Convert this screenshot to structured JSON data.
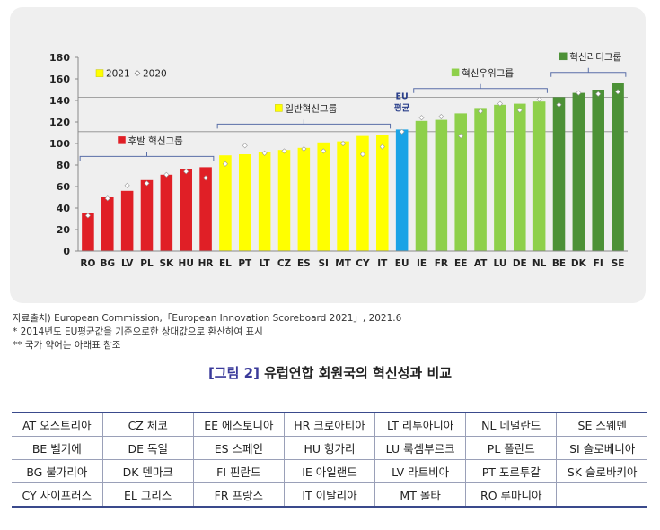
{
  "chart_data": {
    "type": "bar",
    "legend_labels": [
      "2021",
      "2020"
    ],
    "categories": [
      "RO",
      "BG",
      "LV",
      "PL",
      "SK",
      "HU",
      "HR",
      "EL",
      "PT",
      "LT",
      "CZ",
      "ES",
      "SI",
      "MT",
      "CY",
      "IT",
      "EU",
      "IE",
      "FR",
      "EE",
      "AT",
      "LU",
      "DE",
      "NL",
      "BE",
      "DK",
      "FI",
      "SE"
    ],
    "series": [
      {
        "name": "2021",
        "values": [
          35,
          50,
          56,
          66,
          71,
          76,
          78,
          89,
          90,
          92,
          94,
          96,
          101,
          102,
          107,
          108,
          113,
          121,
          122,
          128,
          133,
          136,
          137,
          139,
          143,
          147,
          150,
          156
        ]
      },
      {
        "name": "2020",
        "values": [
          33,
          49,
          61,
          63,
          71,
          74,
          68,
          81,
          98,
          91,
          93,
          95,
          93,
          100,
          90,
          97,
          111,
          124,
          125,
          107,
          130,
          137,
          131,
          141,
          136,
          147,
          146,
          148
        ]
      }
    ],
    "bar_colors": {
      "low": "#e01f26",
      "moderate": "#ffff00",
      "eu": "#1aa3e6",
      "strong": "#8ed04a",
      "leader": "#4c9136",
      "marker": "#ffffff"
    },
    "groups": [
      {
        "label": "후발 혁신그룹",
        "from": 0,
        "to": 6,
        "color": "#e01f26"
      },
      {
        "label": "일반혁신그룹",
        "from": 7,
        "to": 15,
        "color": "#ffff00"
      },
      {
        "label": "혁신우위그룹",
        "from": 17,
        "to": 23,
        "color": "#8ed04a"
      },
      {
        "label": "혁신리더그룹",
        "from": 24,
        "to": 27,
        "color": "#4c9136"
      }
    ],
    "eu_label": [
      "EU",
      "평균"
    ],
    "reference_lines": [
      143,
      111
    ],
    "ylim": [
      0,
      180
    ],
    "yticks": [
      0,
      20,
      40,
      60,
      80,
      100,
      120,
      140,
      160,
      180
    ],
    "grid": false
  },
  "notes": [
    "자료출처) European Commission,「European Innovation Scoreboard 2021」, 2021.6",
    "* 2014년도 EU평균값을 기준으로한 상대값으로 환산하여 표시",
    "** 국가 약어는 아래표 참조"
  ],
  "caption": {
    "number": "[그림 2]",
    "title": "유럽연합 회원국의 혁신성과 비교"
  },
  "country_table": [
    [
      "AT 오스트리아",
      "CZ 체코",
      "EE 에스토니아",
      "HR 크로아티아",
      "LT 리투아니아",
      "NL 네덜란드",
      "SE 스웨덴"
    ],
    [
      "BE 벨기에",
      "DE 독일",
      "ES 스페인",
      "HU 헝가리",
      "LU 룩셈부르크",
      "PL 폴란드",
      "SI 슬로베니아"
    ],
    [
      "BG 불가리아",
      "DK 덴마크",
      "FI 핀란드",
      "IE 아일랜드",
      "LV 라트비아",
      "PT 포르투갈",
      "SK 슬로바키아"
    ],
    [
      "CY 사이프러스",
      "EL 그리스",
      "FR 프랑스",
      "IT 이탈리아",
      "MT 몰타",
      "RO 루마니아",
      ""
    ]
  ]
}
